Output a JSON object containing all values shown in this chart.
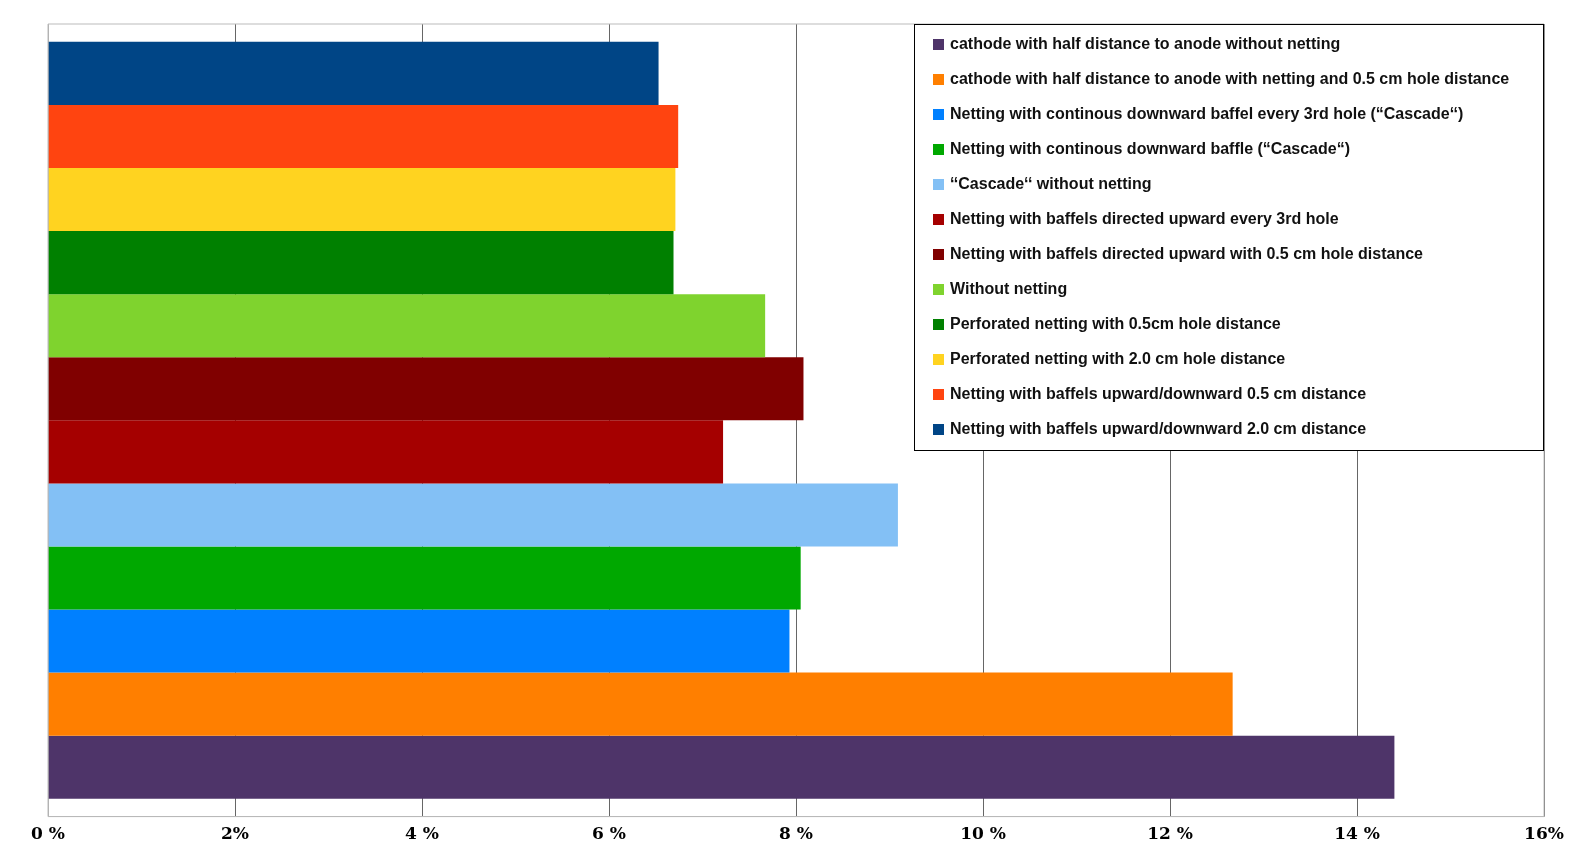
{
  "chart_data": {
    "type": "bar",
    "orientation": "horizontal",
    "categories": [
      null
    ],
    "series": [
      {
        "name": "cathode with half distance to anode without netting",
        "color": "#4e3469",
        "values": [
          14.4
        ]
      },
      {
        "name": "cathode with half distance to anode with netting and 0.5 cm hole distance",
        "color": "#ff7f00",
        "values": [
          12.67
        ]
      },
      {
        "name": "Netting with continous downward baffel every 3rd hole (“Cascade‘‘)",
        "color": "#0080ff",
        "values": [
          7.93
        ]
      },
      {
        "name": "Netting with continous downward baffle (“Cascade“)",
        "color": "#00a800",
        "values": [
          8.05
        ]
      },
      {
        "name": "‘‘Cascade‘‘ without netting",
        "color": "#83c0f5",
        "values": [
          9.09
        ]
      },
      {
        "name": "Netting with baffels directed upward every 3rd hole",
        "color": "#a50000",
        "values": [
          7.22
        ]
      },
      {
        "name": "Netting with baffels directed upward with 0.5 cm hole distance",
        "color": "#800000",
        "values": [
          8.08
        ]
      },
      {
        "name": "Without netting",
        "color": "#7fd32e",
        "values": [
          7.67
        ]
      },
      {
        "name": "Perforated netting with 0.5cm hole distance",
        "color": "#008000",
        "values": [
          6.69
        ]
      },
      {
        "name": "Perforated netting with 2.0 cm hole distance",
        "color": "#ffd320",
        "values": [
          6.71
        ]
      },
      {
        "name": "Netting with baffels upward/downward 0.5 cm distance",
        "color": "#ff4410",
        "values": [
          6.74
        ]
      },
      {
        "name": "Netting with baffels upward/downward 2.0 cm distance",
        "color": "#004586",
        "values": [
          6.53
        ]
      }
    ],
    "xlim": [
      0,
      16
    ],
    "xticks": [
      {
        "value": 0,
        "label": "0 %"
      },
      {
        "value": 2,
        "label": "2%"
      },
      {
        "value": 4,
        "label": "4 %"
      },
      {
        "value": 6,
        "label": "6 %"
      },
      {
        "value": 8,
        "label": "8 %"
      },
      {
        "value": 10,
        "label": "10 %"
      },
      {
        "value": 12,
        "label": "12 %"
      },
      {
        "value": 14,
        "label": "14 %"
      },
      {
        "value": 16,
        "label": "16%"
      }
    ],
    "grid": "x",
    "legend": "top right"
  }
}
